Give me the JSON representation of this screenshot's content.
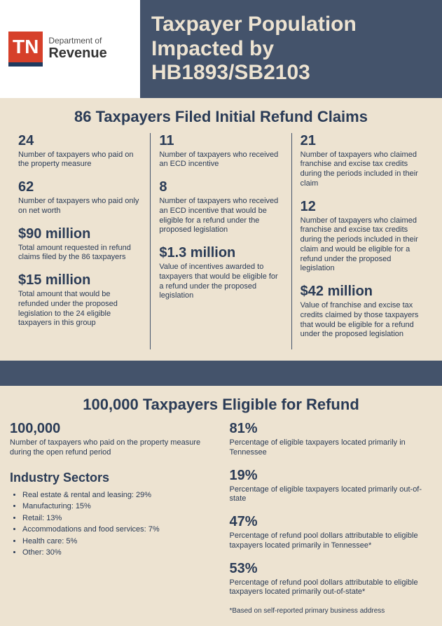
{
  "logo": {
    "badge_text": "TN",
    "badge_bg": "#d6402a",
    "badge_border": "#1f3a5f",
    "dept_line1": "Department of",
    "dept_line2": "Revenue"
  },
  "title": "Taxpayer Population Impacted by HB1893/SB2103",
  "title_bg": "#44536b",
  "title_color": "#ede3d1",
  "page_bg": "#ede3d1",
  "text_color": "#2a3b56",
  "section1": {
    "heading": "86 Taxpayers Filed Initial Refund Claims",
    "col1": [
      {
        "value": "24",
        "desc": "Number of taxpayers who paid on the property measure"
      },
      {
        "value": "62",
        "desc": "Number of taxpayers who paid only on net worth"
      },
      {
        "value": "$90 million",
        "desc": "Total amount requested in refund claims filed by the 86 taxpayers"
      },
      {
        "value": "$15 million",
        "desc": "Total amount that would be refunded under the proposed legislation to the 24 eligible taxpayers in this group"
      }
    ],
    "col2": [
      {
        "value": "11",
        "desc": "Number of taxpayers who received an ECD incentive"
      },
      {
        "value": "8",
        "desc": "Number of taxpayers who received an ECD incentive that would be eligible for a refund under the proposed legislation"
      },
      {
        "value": "$1.3 million",
        "desc": "Value of incentives awarded to taxpayers that would be eligible for a refund under the proposed legislation"
      }
    ],
    "col3": [
      {
        "value": "21",
        "desc": "Number of taxpayers who claimed franchise and excise tax credits during the periods included in their claim"
      },
      {
        "value": "12",
        "desc": "Number of taxpayers who claimed franchise and excise tax credits during the periods included in their claim and would be eligible for a refund under the proposed legislation"
      },
      {
        "value": "$42 million",
        "desc": "Value of franchise and excise tax credits claimed by those taxpayers that would be eligible for a refund under the proposed legislation"
      }
    ]
  },
  "section2": {
    "heading": "100,000 Taxpayers Eligible for Refund",
    "left_stat": {
      "value": "100,000",
      "desc": "Number of taxpayers who paid on the property measure during the open refund period"
    },
    "sectors_heading": "Industry Sectors",
    "sectors": [
      "Real estate & rental and leasing: 29%",
      "Manufacturing: 15%",
      "Retail: 13%",
      "Accommodations and food services: 7%",
      "Health care: 5%",
      "Other: 30%"
    ],
    "right_stats": [
      {
        "value": "81%",
        "desc": "Percentage of eligible taxpayers located primarily in Tennessee"
      },
      {
        "value": "19%",
        "desc": "Percentage of eligible taxpayers located primarily out-of-state"
      },
      {
        "value": "47%",
        "desc": "Percentage of refund pool dollars attributable to eligible taxpayers located primarily in Tennessee*"
      },
      {
        "value": "53%",
        "desc": "Percentage of refund pool dollars attributable to eligible taxpayers located primarily out-of-state*"
      }
    ],
    "footnote": "*Based on self-reported primary business address"
  }
}
